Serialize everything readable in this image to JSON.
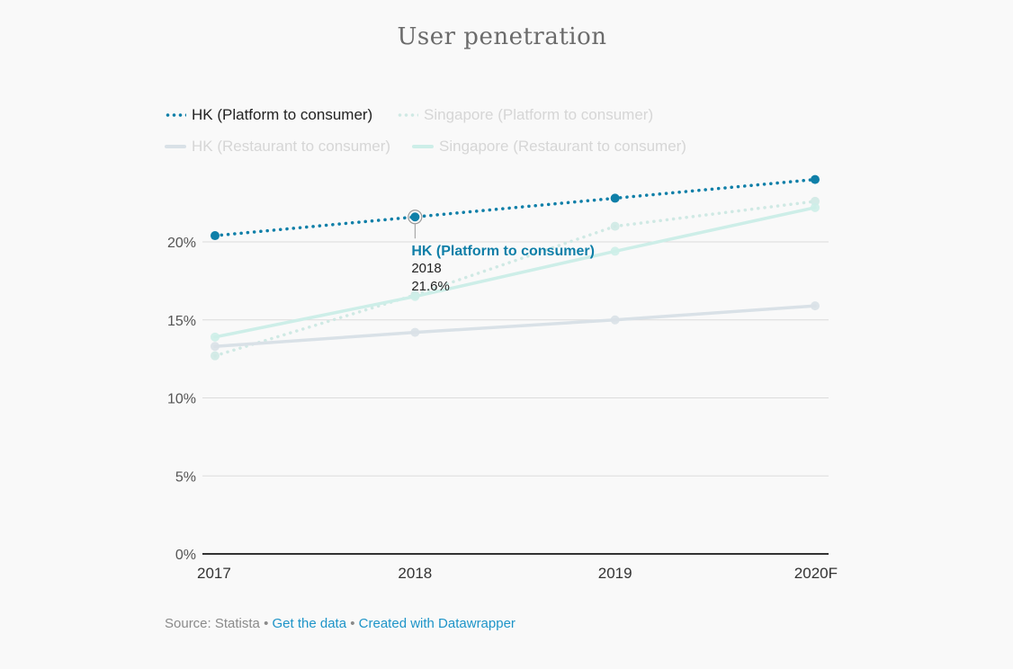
{
  "chart_data": {
    "type": "line",
    "title": "User penetration",
    "x": [
      "2017",
      "2018",
      "2019",
      "2020F"
    ],
    "y_ticks": [
      "0%",
      "5%",
      "10%",
      "15%",
      "20%"
    ],
    "ylim": [
      0,
      25
    ],
    "grid": true,
    "legend_placement": "top-left",
    "series": [
      {
        "name": "HK (Platform to consumer)",
        "values": [
          20.4,
          21.6,
          22.8,
          24.0
        ],
        "style": "dotted",
        "color": "#0f7fa8",
        "active": true
      },
      {
        "name": "Singapore (Platform to consumer)",
        "values": [
          12.7,
          16.6,
          21.0,
          22.6
        ],
        "style": "dotted",
        "color": "#cfe9e4",
        "active": false
      },
      {
        "name": "HK (Restaurant to consumer)",
        "values": [
          13.3,
          14.2,
          15.0,
          15.9
        ],
        "style": "solid",
        "color": "#d9e1e7",
        "active": false
      },
      {
        "name": "Singapore (Restaurant to consumer)",
        "values": [
          13.9,
          16.5,
          19.4,
          22.2
        ],
        "style": "solid",
        "color": "#cdeee8",
        "active": false
      }
    ],
    "tooltip": {
      "series": "HK (Platform to consumer)",
      "x": "2018",
      "value": "21.6%"
    }
  },
  "footer": {
    "source": "Source: Statista",
    "sep": "•",
    "get_data": "Get the data",
    "created": "Created with Datawrapper"
  }
}
